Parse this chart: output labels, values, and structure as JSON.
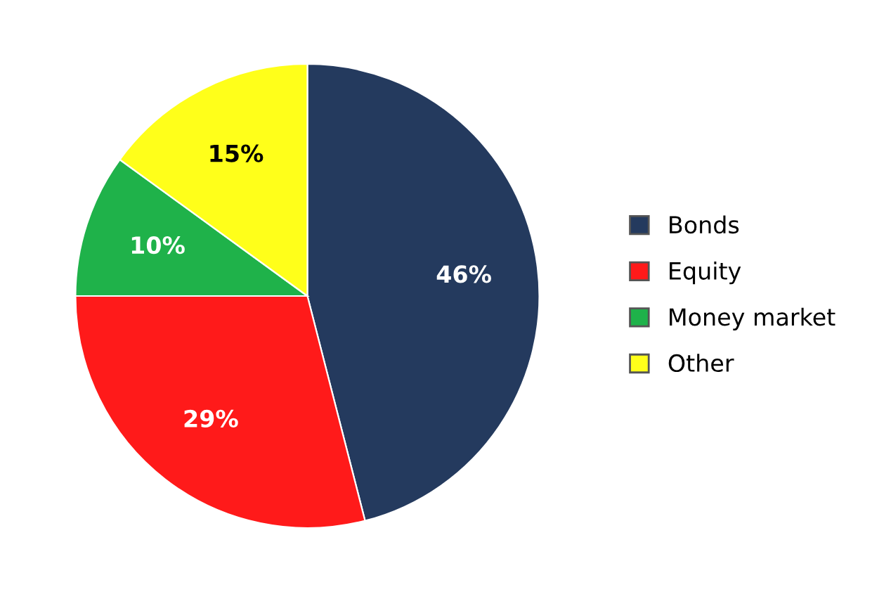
{
  "chart_data": {
    "type": "pie",
    "categories": [
      "Bonds",
      "Equity",
      "Money market",
      "Other"
    ],
    "values": [
      46,
      29,
      10,
      15
    ],
    "colors": [
      "#243a5e",
      "#ff1a1a",
      "#1fb24a",
      "#ffff1a"
    ],
    "value_labels": [
      "46%",
      "29%",
      "10%",
      "15%"
    ],
    "legend": "right"
  }
}
